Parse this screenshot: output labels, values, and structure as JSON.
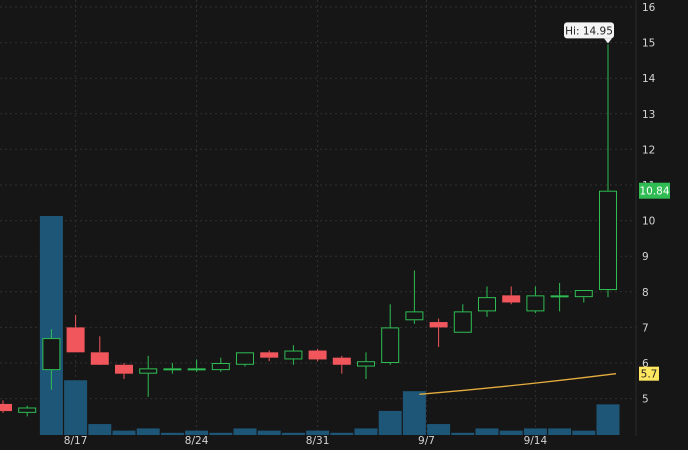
{
  "chart_data": {
    "type": "candlestick",
    "x_tick_labels": [
      "8/17",
      "8/24",
      "8/31",
      "9/7",
      "9/14"
    ],
    "y_tick_labels": [
      "5",
      "6",
      "7",
      "8",
      "9",
      "10",
      "11",
      "12",
      "13",
      "14",
      "15",
      "16"
    ],
    "ylim": [
      4.2,
      16.2
    ],
    "grid": true,
    "candles": [
      {
        "date": "8/12",
        "open": 4.85,
        "high": 4.95,
        "low": 4.6,
        "close": 4.65
      },
      {
        "date": "8/13",
        "open": 4.6,
        "high": 4.8,
        "low": 4.5,
        "close": 4.75
      },
      {
        "date": "8/14",
        "open": 5.8,
        "high": 6.95,
        "low": 5.25,
        "close": 6.7
      },
      {
        "date": "8/17",
        "open": 7.0,
        "high": 7.35,
        "low": 6.3,
        "close": 6.3
      },
      {
        "date": "8/18",
        "open": 6.3,
        "high": 6.75,
        "low": 6.0,
        "close": 5.95
      },
      {
        "date": "8/19",
        "open": 5.95,
        "high": 6.0,
        "low": 5.55,
        "close": 5.7
      },
      {
        "date": "8/20",
        "open": 5.7,
        "high": 6.2,
        "low": 5.05,
        "close": 5.85
      },
      {
        "date": "8/21",
        "open": 5.8,
        "high": 6.0,
        "low": 5.7,
        "close": 5.85
      },
      {
        "date": "8/24",
        "open": 5.8,
        "high": 6.1,
        "low": 5.75,
        "close": 5.85
      },
      {
        "date": "8/25",
        "open": 5.8,
        "high": 6.15,
        "low": 5.75,
        "close": 6.0
      },
      {
        "date": "8/26",
        "open": 5.95,
        "high": 6.3,
        "low": 5.9,
        "close": 6.3
      },
      {
        "date": "8/27",
        "open": 6.3,
        "high": 6.35,
        "low": 6.05,
        "close": 6.15
      },
      {
        "date": "8/28",
        "open": 6.1,
        "high": 6.5,
        "low": 5.95,
        "close": 6.35
      },
      {
        "date": "8/31",
        "open": 6.35,
        "high": 6.4,
        "low": 6.05,
        "close": 6.1
      },
      {
        "date": "9/1",
        "open": 6.15,
        "high": 6.2,
        "low": 5.7,
        "close": 5.95
      },
      {
        "date": "9/2",
        "open": 5.9,
        "high": 6.3,
        "low": 5.55,
        "close": 6.05
      },
      {
        "date": "9/3",
        "open": 6.0,
        "high": 7.65,
        "low": 5.95,
        "close": 7.0
      },
      {
        "date": "9/4",
        "open": 7.2,
        "high": 8.6,
        "low": 7.1,
        "close": 7.45
      },
      {
        "date": "9/8",
        "open": 7.15,
        "high": 7.25,
        "low": 6.45,
        "close": 7.0
      },
      {
        "date": "9/9",
        "open": 6.85,
        "high": 7.65,
        "low": 6.85,
        "close": 7.45
      },
      {
        "date": "9/10",
        "open": 7.45,
        "high": 8.15,
        "low": 7.3,
        "close": 7.85
      },
      {
        "date": "9/11",
        "open": 7.9,
        "high": 8.15,
        "low": 7.65,
        "close": 7.7
      },
      {
        "date": "9/14",
        "open": 7.45,
        "high": 8.15,
        "low": 7.4,
        "close": 7.9
      },
      {
        "date": "9/15",
        "open": 7.85,
        "high": 8.25,
        "low": 7.45,
        "close": 7.9
      },
      {
        "date": "9/16",
        "open": 7.85,
        "high": 8.05,
        "low": 7.7,
        "close": 8.05
      },
      {
        "date": "9/17",
        "open": 8.05,
        "high": 14.95,
        "low": 7.85,
        "close": 10.84
      }
    ],
    "volume_relative": [
      0,
      0,
      1.0,
      0.25,
      0.05,
      0.02,
      0.03,
      0.01,
      0.02,
      0.01,
      0.03,
      0.02,
      0.01,
      0.02,
      0.01,
      0.03,
      0.11,
      0.2,
      0.05,
      0.01,
      0.03,
      0.02,
      0.03,
      0.03,
      0.02,
      0.14
    ],
    "moving_average": {
      "from": "9/4",
      "to": "9/17",
      "start_value": 5.12,
      "end_value": 5.7
    },
    "annotations": {
      "high_label": "Hi: 14.95",
      "last_price_label": "10.84",
      "average_label": "5.7"
    },
    "colors": {
      "background": "#161616",
      "grid": "#303030",
      "up": "#2fbd53",
      "down": "#f0565c",
      "volume": "#1e5678",
      "moving_average": "#e5ac3e",
      "axis_text": "#d4d4d4",
      "high_label_bg": "#f4f4f4",
      "high_label_text": "#222222",
      "last_price_bg": "#2fbd53",
      "average_label_bg": "#ffe860"
    }
  }
}
